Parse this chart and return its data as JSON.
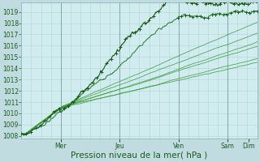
{
  "background_color": "#c0dce0",
  "plot_bg_color": "#d0ecee",
  "grid_color_minor": "#b0d4d8",
  "grid_color_major": "#90bcC0",
  "line_color_dark": "#1a5c1a",
  "line_color_mid": "#2a7a2a",
  "line_color_light": "#3a9a3a",
  "xlabel": "Pression niveau de la mer( hPa )",
  "xlabel_fontsize": 7.5,
  "yticks": [
    1008,
    1009,
    1010,
    1011,
    1012,
    1013,
    1014,
    1015,
    1016,
    1017,
    1018,
    1019
  ],
  "ylim": [
    1007.8,
    1019.8
  ],
  "xlim": [
    0,
    8.0
  ],
  "day_labels": [
    "Mer",
    "Jeu",
    "Ven",
    "Sam",
    "Dim"
  ],
  "day_x": [
    1.333,
    3.333,
    5.333,
    7.0,
    7.7
  ]
}
